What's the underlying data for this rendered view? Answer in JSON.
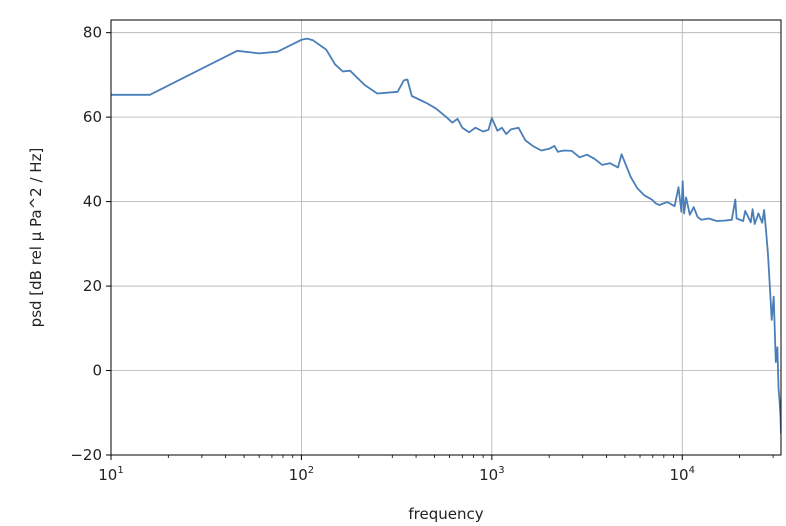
{
  "chart_data": {
    "type": "line",
    "title": "",
    "xlabel": "frequency",
    "ylabel": "psd [dB rel µ Pa^2 / Hz]",
    "xscale": "log",
    "xlim": [
      10,
      33000
    ],
    "ylim": [
      -20,
      83
    ],
    "grid": true,
    "line_color": "#4a7eb8",
    "x_ticks": [
      {
        "base": "10",
        "exp": "1",
        "value": 10
      },
      {
        "base": "10",
        "exp": "2",
        "value": 100
      },
      {
        "base": "10",
        "exp": "3",
        "value": 1000
      },
      {
        "base": "10",
        "exp": "4",
        "value": 10000
      }
    ],
    "y_ticks": [
      {
        "label": "80",
        "value": 80
      },
      {
        "label": "60",
        "value": 60
      },
      {
        "label": "40",
        "value": 40
      },
      {
        "label": "20",
        "value": 20
      },
      {
        "label": "0",
        "value": 0
      },
      {
        "label": "−20",
        "value": -20
      }
    ],
    "series": [
      {
        "x": [
          10,
          16,
          30,
          46,
          60,
          75,
          100,
          107,
          115,
          135,
          150,
          165,
          180,
          215,
          250,
          320,
          345,
          360,
          380,
          410,
          460,
          510,
          570,
          620,
          660,
          700,
          760,
          820,
          900,
          960,
          1000,
          1070,
          1130,
          1190,
          1260,
          1380,
          1500,
          1650,
          1820,
          2000,
          2130,
          2220,
          2400,
          2630,
          2890,
          3160,
          3470,
          3800,
          4170,
          4600,
          4800,
          5020,
          5370,
          5800,
          6310,
          6920,
          7240,
          7590,
          8320,
          9120,
          9550,
          9900,
          10050,
          10230,
          10470,
          10960,
          11480,
          12020,
          12590,
          13800,
          15140,
          16600,
          18200,
          19000,
          19300,
          20900,
          21400,
          22900,
          23400,
          24000,
          25100,
          26300,
          26900,
          27500,
          28200,
          28800,
          29500,
          30200,
          31000,
          31600,
          32000,
          32400,
          32800,
          33000
        ],
        "y": [
          65.3,
          65.3,
          71.5,
          75.7,
          75.1,
          75.5,
          78.3,
          78.6,
          78.2,
          76.0,
          72.5,
          70.8,
          71.0,
          67.6,
          65.6,
          66.0,
          68.7,
          68.9,
          65.0,
          64.3,
          63.2,
          62.0,
          60.2,
          58.7,
          59.6,
          57.5,
          56.4,
          57.5,
          56.6,
          57.0,
          59.8,
          56.8,
          57.5,
          56.0,
          57.1,
          57.5,
          54.5,
          53.1,
          52.1,
          52.5,
          53.2,
          51.8,
          52.1,
          52.0,
          50.5,
          51.1,
          50.1,
          48.7,
          49.1,
          48.1,
          51.2,
          49.0,
          45.8,
          43.2,
          41.5,
          40.5,
          39.6,
          39.2,
          39.9,
          38.9,
          43.4,
          37.6,
          44.8,
          37.2,
          41.0,
          36.9,
          38.7,
          36.4,
          35.7,
          36.0,
          35.4,
          35.5,
          35.7,
          40.5,
          36.0,
          35.4,
          37.8,
          35.1,
          38.2,
          34.7,
          37.2,
          35.0,
          38.0,
          33.5,
          27.5,
          20.5,
          12.0,
          17.5,
          2.0,
          5.5,
          -4.0,
          -7.0,
          -11.0,
          -15.0
        ]
      }
    ]
  }
}
